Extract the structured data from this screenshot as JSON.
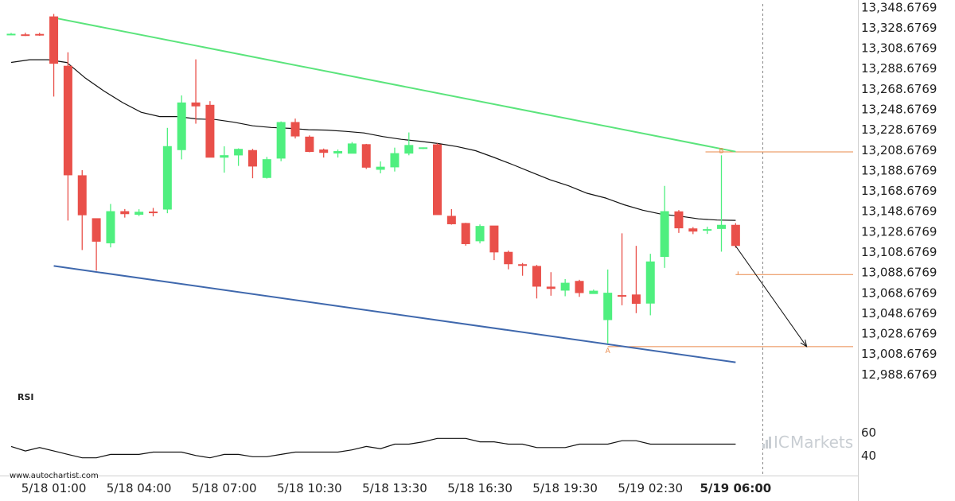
{
  "chart_data": {
    "type": "candlestick",
    "x_tick_labels": [
      "5/18 01:00",
      "5/18 04:00",
      "5/18 07:00",
      "5/18 10:30",
      "5/18 13:30",
      "5/18 16:30",
      "5/18 19:30",
      "5/19 02:30",
      "5/19 06:00"
    ],
    "y_tick_labels": [
      "13,348.6769",
      "13,328.6769",
      "13,308.6769",
      "13,288.6769",
      "13,268.6769",
      "13,248.6769",
      "13,228.6769",
      "13,208.6769",
      "13,188.6769",
      "13,168.6769",
      "13,148.6769",
      "13,128.6769",
      "13,108.6769",
      "13,088.6769",
      "13,068.6769",
      "13,048.6769",
      "13,028.6769",
      "13,008.6769",
      "12,988.6769"
    ],
    "y_ticks": [
      13348.6769,
      13328.6769,
      13308.6769,
      13288.6769,
      13268.6769,
      13248.6769,
      13228.6769,
      13208.6769,
      13188.6769,
      13168.6769,
      13148.6769,
      13128.6769,
      13108.6769,
      13088.6769,
      13068.6769,
      13048.6769,
      13028.6769,
      13008.6769,
      12988.6769
    ],
    "ylim": [
      12980,
      13352
    ],
    "candles": [
      {
        "o": 13322.6,
        "h": 13323.6,
        "l": 13321.6,
        "c": 13322.8
      },
      {
        "o": 13322.2,
        "h": 13323.8,
        "l": 13320.6,
        "c": 13321.9
      },
      {
        "o": 13322.6,
        "h": 13323.7,
        "l": 13320.8,
        "c": 13322.4
      },
      {
        "o": 13339.8,
        "h": 13342.2,
        "l": 13261.2,
        "c": 13293.4
      },
      {
        "o": 13291.4,
        "h": 13304.6,
        "l": 13139.6,
        "c": 13184.0
      },
      {
        "o": 13184.0,
        "h": 13189.0,
        "l": 13110.7,
        "c": 13144.8
      },
      {
        "o": 13141.9,
        "h": 13140.5,
        "l": 13090.5,
        "c": 13118.9
      },
      {
        "o": 13117.3,
        "h": 13155.9,
        "l": 13113.3,
        "c": 13148.8
      },
      {
        "o": 13148.8,
        "h": 13150.9,
        "l": 13142.5,
        "c": 13145.9
      },
      {
        "o": 13145.3,
        "h": 13150.7,
        "l": 13144.0,
        "c": 13148.2
      },
      {
        "o": 13148.4,
        "h": 13152.0,
        "l": 13143.7,
        "c": 13148.2
      },
      {
        "o": 13150.4,
        "h": 13230.5,
        "l": 13146.8,
        "c": 13212.6
      },
      {
        "o": 13208.7,
        "h": 13262.3,
        "l": 13199.6,
        "c": 13255.4
      },
      {
        "o": 13255.4,
        "h": 13297.7,
        "l": 13234.6,
        "c": 13251.6
      },
      {
        "o": 13253.1,
        "h": 13256.7,
        "l": 13201.5,
        "c": 13201.3
      },
      {
        "o": 13201.3,
        "h": 13212.4,
        "l": 13186.6,
        "c": 13203.7
      },
      {
        "o": 13203.5,
        "h": 13210.4,
        "l": 13193.2,
        "c": 13209.9
      },
      {
        "o": 13208.7,
        "h": 13209.9,
        "l": 13181.1,
        "c": 13192.6
      },
      {
        "o": 13181.4,
        "h": 13202.0,
        "l": 13180.8,
        "c": 13199.8
      },
      {
        "o": 13200.4,
        "h": 13236.8,
        "l": 13197.8,
        "c": 13236.2
      },
      {
        "o": 13236.2,
        "h": 13239.6,
        "l": 13220.1,
        "c": 13222.1
      },
      {
        "o": 13221.9,
        "h": 13223.1,
        "l": 13206.6,
        "c": 13206.9
      },
      {
        "o": 13209.3,
        "h": 13210.2,
        "l": 13201.4,
        "c": 13206.0
      },
      {
        "o": 13205.4,
        "h": 13209.3,
        "l": 13201.4,
        "c": 13207.7
      },
      {
        "o": 13205.2,
        "h": 13216.6,
        "l": 13206.6,
        "c": 13215.2
      },
      {
        "o": 13214.5,
        "h": 13214.8,
        "l": 13190.2,
        "c": 13191.5
      },
      {
        "o": 13189.4,
        "h": 13197.6,
        "l": 13185.9,
        "c": 13192.4
      },
      {
        "o": 13191.8,
        "h": 13211.1,
        "l": 13187.7,
        "c": 13205.7
      },
      {
        "o": 13205.3,
        "h": 13226.0,
        "l": 13203.6,
        "c": 13213.7
      },
      {
        "o": 13210.9,
        "h": 13211.3,
        "l": 13209.7,
        "c": 13211.4
      },
      {
        "o": 13214.3,
        "h": 13215.3,
        "l": 13147.0,
        "c": 13145.0
      },
      {
        "o": 13144.2,
        "h": 13150.8,
        "l": 13135.6,
        "c": 13136.0
      },
      {
        "o": 13137.2,
        "h": 13137.4,
        "l": 13115.0,
        "c": 13116.5
      },
      {
        "o": 13119.3,
        "h": 13135.8,
        "l": 13117.2,
        "c": 13134.3
      },
      {
        "o": 13134.7,
        "h": 13134.3,
        "l": 13100.8,
        "c": 13108.4
      },
      {
        "o": 13108.9,
        "h": 13110.1,
        "l": 13091.8,
        "c": 13096.8
      },
      {
        "o": 13096.8,
        "h": 13098.0,
        "l": 13085.5,
        "c": 13095.2
      },
      {
        "o": 13095.1,
        "h": 13096.1,
        "l": 13063.2,
        "c": 13074.8
      },
      {
        "o": 13074.8,
        "h": 13089.0,
        "l": 13065.9,
        "c": 13072.6
      },
      {
        "o": 13070.9,
        "h": 13082.2,
        "l": 13065.4,
        "c": 13078.6
      },
      {
        "o": 13080.4,
        "h": 13081.5,
        "l": 13064.8,
        "c": 13068.5
      },
      {
        "o": 13067.6,
        "h": 13071.9,
        "l": 13068.0,
        "c": 13070.8
      },
      {
        "o": 13042.0,
        "h": 13091.6,
        "l": 13019.1,
        "c": 13068.8
      },
      {
        "o": 13066.5,
        "h": 13127.1,
        "l": 13056.5,
        "c": 13065.8
      },
      {
        "o": 13067.1,
        "h": 13114.8,
        "l": 13048.8,
        "c": 13058.0
      },
      {
        "o": 13058.2,
        "h": 13107.0,
        "l": 13046.7,
        "c": 13099.5
      },
      {
        "o": 13104.0,
        "h": 13173.6,
        "l": 13093.2,
        "c": 13148.8
      },
      {
        "o": 13148.6,
        "h": 13149.9,
        "l": 13127.5,
        "c": 13132.0
      },
      {
        "o": 13131.9,
        "h": 13133.2,
        "l": 13126.3,
        "c": 13128.8
      },
      {
        "o": 13130.1,
        "h": 13133.5,
        "l": 13126.5,
        "c": 13131.2
      },
      {
        "o": 13131.4,
        "h": 13203.6,
        "l": 13109.1,
        "c": 13135.4
      },
      {
        "o": 13135.4,
        "h": 13137.1,
        "l": 13112.8,
        "c": 13114.7
      }
    ],
    "moving_average": [
      13294.7,
      13297.3,
      13297.3,
      13294.6,
      13279.2,
      13266.6,
      13255.3,
      13245.8,
      13241.6,
      13241.6,
      13239.2,
      13238.7,
      13236.0,
      13232.5,
      13230.9,
      13230.0,
      13228.7,
      13228.3,
      13227.1,
      13225.5,
      13222.0,
      13219.3,
      13217.4,
      13215.1,
      13212.2,
      13208.1,
      13201.5,
      13194.5,
      13187.0,
      13179.7,
      13173.7,
      13166.4,
      13161.7,
      13155.1,
      13149.8,
      13145.9,
      13143.9,
      13141.3,
      13140.1,
      13139.8
    ],
    "upper_trendline": {
      "from": [
        3,
        13338.5
      ],
      "to": [
        51,
        13207.2
      ]
    },
    "lower_trendline": {
      "from": [
        3,
        13095.1
      ],
      "to": [
        51,
        13000.6
      ]
    },
    "projection": {
      "from": [
        51,
        13114.7
      ],
      "to": [
        56,
        13016.0
      ]
    },
    "levels": [
      13206.9,
      13086.6,
      13016.0
    ],
    "point_labels": [
      "A",
      "B"
    ],
    "point_a": [
      42,
      13019.1
    ],
    "point_b": [
      50,
      13203.6
    ],
    "colors": {
      "bull": "#4fef7f",
      "bear": "#e9504a",
      "upper_line": "#5be47c",
      "lower_line": "#3f68ad",
      "level": "#e9894a",
      "ma": "#111111"
    }
  },
  "rsi": {
    "title": "RSI",
    "tick_labels": [
      "60",
      "40"
    ],
    "ticks": [
      60,
      40
    ],
    "range": [
      28,
      72
    ],
    "values": [
      48,
      44,
      47,
      44,
      41,
      38,
      38,
      41,
      41,
      41,
      43,
      43,
      43,
      40,
      38,
      41,
      41,
      39,
      39,
      41,
      43,
      43,
      43,
      43,
      45,
      48,
      46,
      50,
      50,
      52,
      55,
      55,
      55,
      52,
      52,
      50,
      50,
      47,
      47,
      47,
      50,
      50,
      50,
      53,
      53,
      50,
      50,
      50,
      50,
      50,
      50,
      50
    ]
  },
  "watermark": "www.autochartist.com",
  "brand": {
    "part1": "IC",
    "part2": "Markets"
  }
}
